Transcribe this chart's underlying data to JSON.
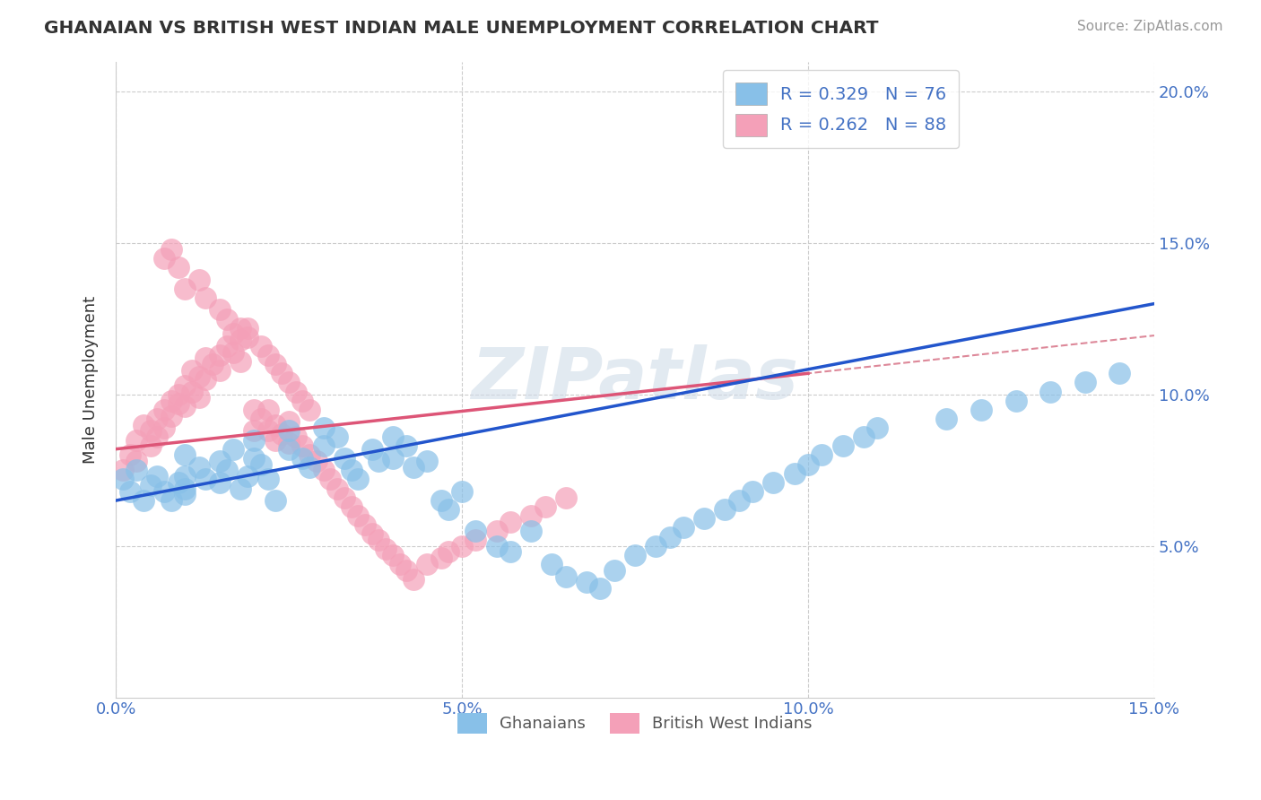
{
  "title": "GHANAIAN VS BRITISH WEST INDIAN MALE UNEMPLOYMENT CORRELATION CHART",
  "source": "Source: ZipAtlas.com",
  "ylabel": "Male Unemployment",
  "xlim": [
    0.0,
    0.15
  ],
  "ylim": [
    0.0,
    0.21
  ],
  "x_ticks": [
    0.0,
    0.05,
    0.1,
    0.15
  ],
  "x_tick_labels": [
    "0.0%",
    "5.0%",
    "10.0%",
    "15.0%"
  ],
  "y_ticks": [
    0.05,
    0.1,
    0.15,
    0.2
  ],
  "y_tick_labels": [
    "5.0%",
    "10.0%",
    "15.0%",
    "20.0%"
  ],
  "ghanaians_color": "#88c0e8",
  "bwi_color": "#f4a0b8",
  "ghanaians_line_color": "#2255cc",
  "bwi_line_color": "#dd5577",
  "bwi_dash_color": "#dd8899",
  "R_ghanaians": 0.329,
  "N_ghanaians": 76,
  "R_bwi": 0.262,
  "N_bwi": 88,
  "watermark": "ZIPatlas",
  "background_color": "#ffffff",
  "grid_color": "#cccccc",
  "legend_labels": [
    "Ghanaians",
    "British West Indians"
  ],
  "ghanaians_x": [
    0.001,
    0.002,
    0.003,
    0.004,
    0.005,
    0.006,
    0.007,
    0.008,
    0.009,
    0.01,
    0.01,
    0.01,
    0.01,
    0.012,
    0.013,
    0.015,
    0.015,
    0.016,
    0.017,
    0.018,
    0.019,
    0.02,
    0.02,
    0.021,
    0.022,
    0.023,
    0.025,
    0.025,
    0.027,
    0.028,
    0.03,
    0.03,
    0.032,
    0.033,
    0.034,
    0.035,
    0.037,
    0.038,
    0.04,
    0.04,
    0.042,
    0.043,
    0.045,
    0.047,
    0.048,
    0.05,
    0.052,
    0.055,
    0.057,
    0.06,
    0.063,
    0.065,
    0.068,
    0.07,
    0.072,
    0.075,
    0.078,
    0.08,
    0.082,
    0.085,
    0.088,
    0.09,
    0.092,
    0.095,
    0.098,
    0.1,
    0.102,
    0.105,
    0.108,
    0.11,
    0.12,
    0.125,
    0.13,
    0.135,
    0.14,
    0.145
  ],
  "ghanaians_y": [
    0.072,
    0.068,
    0.075,
    0.065,
    0.07,
    0.073,
    0.068,
    0.065,
    0.071,
    0.067,
    0.08,
    0.073,
    0.069,
    0.076,
    0.072,
    0.078,
    0.071,
    0.075,
    0.082,
    0.069,
    0.073,
    0.085,
    0.079,
    0.077,
    0.072,
    0.065,
    0.088,
    0.082,
    0.079,
    0.076,
    0.089,
    0.083,
    0.086,
    0.079,
    0.075,
    0.072,
    0.082,
    0.078,
    0.086,
    0.079,
    0.083,
    0.076,
    0.078,
    0.065,
    0.062,
    0.068,
    0.055,
    0.05,
    0.048,
    0.055,
    0.044,
    0.04,
    0.038,
    0.036,
    0.042,
    0.047,
    0.05,
    0.053,
    0.056,
    0.059,
    0.062,
    0.065,
    0.068,
    0.071,
    0.074,
    0.077,
    0.08,
    0.083,
    0.086,
    0.089,
    0.092,
    0.095,
    0.098,
    0.101,
    0.104,
    0.107
  ],
  "bwi_x": [
    0.001,
    0.002,
    0.003,
    0.003,
    0.004,
    0.005,
    0.005,
    0.006,
    0.006,
    0.007,
    0.007,
    0.008,
    0.008,
    0.009,
    0.009,
    0.01,
    0.01,
    0.011,
    0.011,
    0.012,
    0.012,
    0.013,
    0.013,
    0.014,
    0.015,
    0.015,
    0.016,
    0.017,
    0.017,
    0.018,
    0.018,
    0.019,
    0.02,
    0.02,
    0.021,
    0.022,
    0.022,
    0.023,
    0.023,
    0.024,
    0.025,
    0.025,
    0.026,
    0.027,
    0.028,
    0.029,
    0.03,
    0.031,
    0.032,
    0.033,
    0.034,
    0.035,
    0.036,
    0.037,
    0.038,
    0.039,
    0.04,
    0.041,
    0.042,
    0.043,
    0.045,
    0.047,
    0.048,
    0.05,
    0.052,
    0.055,
    0.057,
    0.06,
    0.062,
    0.065,
    0.007,
    0.008,
    0.009,
    0.01,
    0.012,
    0.013,
    0.015,
    0.016,
    0.018,
    0.019,
    0.021,
    0.022,
    0.023,
    0.024,
    0.025,
    0.026,
    0.027,
    0.028
  ],
  "bwi_y": [
    0.075,
    0.08,
    0.085,
    0.078,
    0.09,
    0.088,
    0.083,
    0.092,
    0.086,
    0.095,
    0.089,
    0.098,
    0.093,
    0.1,
    0.097,
    0.103,
    0.096,
    0.108,
    0.101,
    0.106,
    0.099,
    0.112,
    0.105,
    0.11,
    0.113,
    0.108,
    0.116,
    0.12,
    0.114,
    0.118,
    0.111,
    0.122,
    0.095,
    0.088,
    0.092,
    0.095,
    0.088,
    0.09,
    0.085,
    0.087,
    0.091,
    0.084,
    0.086,
    0.083,
    0.08,
    0.078,
    0.075,
    0.072,
    0.069,
    0.066,
    0.063,
    0.06,
    0.057,
    0.054,
    0.052,
    0.049,
    0.047,
    0.044,
    0.042,
    0.039,
    0.044,
    0.046,
    0.048,
    0.05,
    0.052,
    0.055,
    0.058,
    0.06,
    0.063,
    0.066,
    0.145,
    0.148,
    0.142,
    0.135,
    0.138,
    0.132,
    0.128,
    0.125,
    0.122,
    0.119,
    0.116,
    0.113,
    0.11,
    0.107,
    0.104,
    0.101,
    0.098,
    0.095
  ]
}
